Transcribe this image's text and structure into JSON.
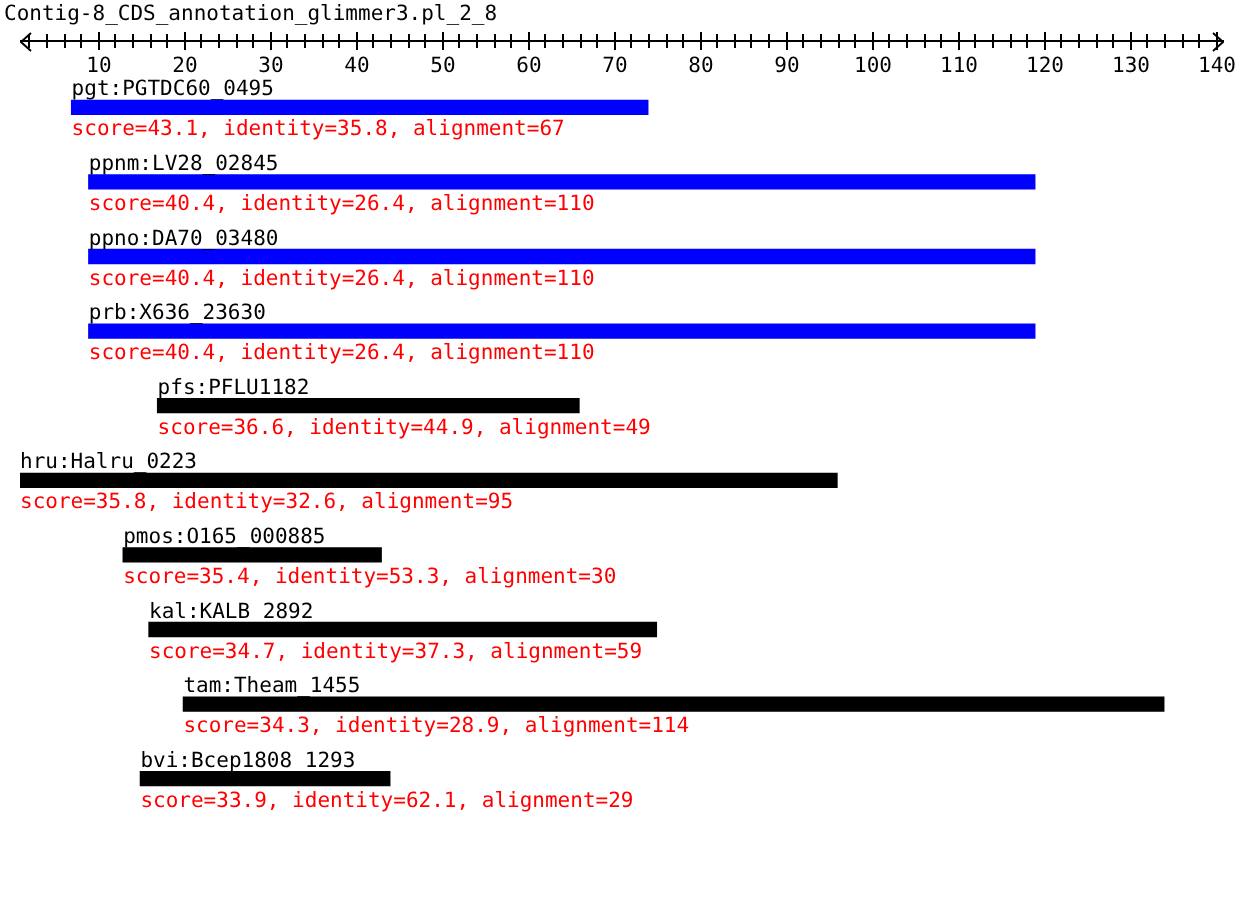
{
  "chart_data": {
    "type": "bar",
    "orientation": "horizontal",
    "title": "Contig-8_CDS_annotation_glimmer3.pl_2_8",
    "categories": [
      "pgt:PGTDC60_0495",
      "ppnm:LV28_02845",
      "ppno:DA70_03480",
      "prb:X636_23630",
      "pfs:PFLU1182",
      "hru:Halru_0223",
      "pmos:O165_000885",
      "kal:KALB_2892",
      "tam:Theam_1455",
      "bvi:Bcep1808_1293"
    ],
    "base": [
      7,
      9,
      9,
      9,
      17,
      1,
      13,
      16,
      20,
      15
    ],
    "values": [
      67,
      110,
      110,
      110,
      49,
      95,
      30,
      59,
      114,
      29
    ],
    "colors": [
      "#0000ff",
      "#0000ff",
      "#0000ff",
      "#0000ff",
      "#000000",
      "#000000",
      "#000000",
      "#000000",
      "#000000",
      "#000000"
    ],
    "value_labels": [
      "score=43.1, identity=35.8, alignment=67",
      "score=40.4, identity=26.4, alignment=110",
      "score=40.4, identity=26.4, alignment=110",
      "score=40.4, identity=26.4, alignment=110",
      "score=36.6, identity=44.9, alignment=49",
      "score=35.8, identity=32.6, alignment=95",
      "score=35.4, identity=53.3, alignment=30",
      "score=34.7, identity=37.3, alignment=59",
      "score=34.3, identity=28.9, alignment=114",
      "score=33.9, identity=62.1, alignment=29"
    ],
    "xlim": [
      1,
      141
    ],
    "xticks": [
      {
        "value": 2,
        "label": null
      },
      {
        "value": 4,
        "label": null
      },
      {
        "value": 6,
        "label": null
      },
      {
        "value": 8,
        "label": null
      },
      10,
      {
        "value": 12,
        "label": null
      },
      {
        "value": 14,
        "label": null
      },
      {
        "value": 16,
        "label": null
      },
      {
        "value": 18,
        "label": null
      },
      20,
      {
        "value": 22,
        "label": null
      },
      {
        "value": 24,
        "label": null
      },
      {
        "value": 26,
        "label": null
      },
      {
        "value": 28,
        "label": null
      },
      30,
      {
        "value": 32,
        "label": null
      },
      {
        "value": 34,
        "label": null
      },
      {
        "value": 36,
        "label": null
      },
      {
        "value": 38,
        "label": null
      },
      40,
      {
        "value": 42,
        "label": null
      },
      {
        "value": 44,
        "label": null
      },
      {
        "value": 46,
        "label": null
      },
      {
        "value": 48,
        "label": null
      },
      50,
      {
        "value": 52,
        "label": null
      },
      {
        "value": 54,
        "label": null
      },
      {
        "value": 56,
        "label": null
      },
      {
        "value": 58,
        "label": null
      },
      60,
      {
        "value": 62,
        "label": null
      },
      {
        "value": 64,
        "label": null
      },
      {
        "value": 66,
        "label": null
      },
      {
        "value": 68,
        "label": null
      },
      70,
      {
        "value": 72,
        "label": null
      },
      {
        "value": 74,
        "label": null
      },
      {
        "value": 76,
        "label": null
      },
      {
        "value": 78,
        "label": null
      },
      80,
      {
        "value": 82,
        "label": null
      },
      {
        "value": 84,
        "label": null
      },
      {
        "value": 86,
        "label": null
      },
      {
        "value": 88,
        "label": null
      },
      90,
      {
        "value": 92,
        "label": null
      },
      {
        "value": 94,
        "label": null
      },
      {
        "value": 96,
        "label": null
      },
      {
        "value": 98,
        "label": null
      },
      100,
      {
        "value": 102,
        "label": null
      },
      {
        "value": 104,
        "label": null
      },
      {
        "value": 106,
        "label": null
      },
      {
        "value": 108,
        "label": null
      },
      110,
      {
        "value": 112,
        "label": null
      },
      {
        "value": 114,
        "label": null
      },
      {
        "value": 116,
        "label": null
      },
      {
        "value": 118,
        "label": null
      },
      120,
      {
        "value": 122,
        "label": null
      },
      {
        "value": 124,
        "label": null
      },
      {
        "value": 126,
        "label": null
      },
      {
        "value": 128,
        "label": null
      },
      130,
      {
        "value": 132,
        "label": null
      },
      {
        "value": 134,
        "label": null
      },
      {
        "value": 136,
        "label": null
      },
      {
        "value": 138,
        "label": null
      },
      140
    ],
    "legend": false
  }
}
